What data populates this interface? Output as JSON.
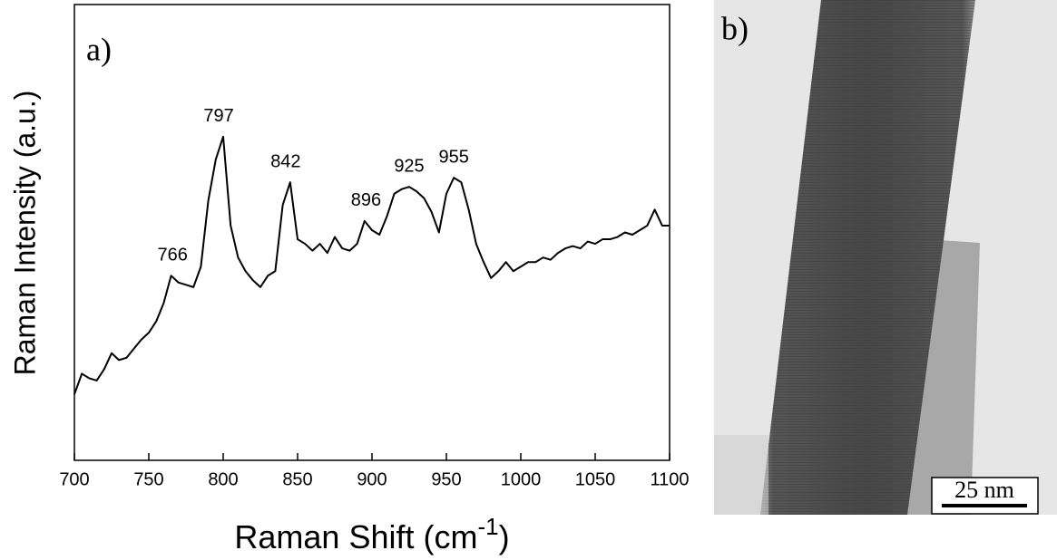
{
  "chart_data": {
    "type": "line",
    "panel_label": "a)",
    "x_label": {
      "text": "Raman Shift (cm",
      "superscript": "-1",
      "suffix": ")"
    },
    "y_label": "Raman Intensity (a.u.)",
    "x": [
      700,
      705,
      710,
      715,
      720,
      725,
      730,
      735,
      740,
      745,
      750,
      755,
      760,
      765,
      770,
      775,
      780,
      785,
      790,
      795,
      800,
      805,
      810,
      815,
      820,
      825,
      830,
      835,
      840,
      845,
      850,
      855,
      860,
      865,
      870,
      875,
      880,
      885,
      890,
      895,
      900,
      905,
      910,
      915,
      920,
      925,
      930,
      935,
      940,
      945,
      950,
      955,
      960,
      965,
      970,
      975,
      980,
      985,
      990,
      995,
      1000,
      1005,
      1010,
      1015,
      1020,
      1025,
      1030,
      1035,
      1040,
      1045,
      1050,
      1055,
      1060,
      1065,
      1070,
      1075,
      1080,
      1085,
      1090,
      1095,
      1100
    ],
    "series": [
      {
        "color": "#000000",
        "values": [
          14.5,
          19,
          18,
          17.5,
          20,
          23.5,
          22,
          22.5,
          24.5,
          26.5,
          28,
          30.5,
          34.5,
          40.5,
          39,
          38.5,
          38,
          42.5,
          57,
          66,
          71,
          51.5,
          44.5,
          41.5,
          39.5,
          38,
          40.5,
          41.5,
          56,
          61,
          48.5,
          47.5,
          46,
          47.5,
          45.5,
          49,
          46.5,
          46,
          47.5,
          52.5,
          50.5,
          49.5,
          53.5,
          58.5,
          59.5,
          60,
          59,
          57.5,
          54.5,
          50,
          58.5,
          62,
          61,
          55,
          47.5,
          43.5,
          40,
          41.5,
          43.5,
          41.5,
          42.5,
          43.5,
          43.5,
          44.5,
          44,
          45.5,
          46.5,
          47,
          46.5,
          48,
          47.5,
          48.5,
          48.5,
          49,
          50,
          49.5,
          50.5,
          51.5,
          55,
          51.5,
          51.5
        ]
      }
    ],
    "xlim": [
      700,
      1100
    ],
    "xticks": [
      700,
      750,
      800,
      850,
      900,
      950,
      1000,
      1050,
      1100
    ],
    "ylim": [
      0,
      100
    ],
    "peaks": [
      766,
      797,
      842,
      896,
      925,
      955
    ]
  },
  "image": {
    "panel_label": "b)",
    "scale_bar": "25 nm"
  }
}
